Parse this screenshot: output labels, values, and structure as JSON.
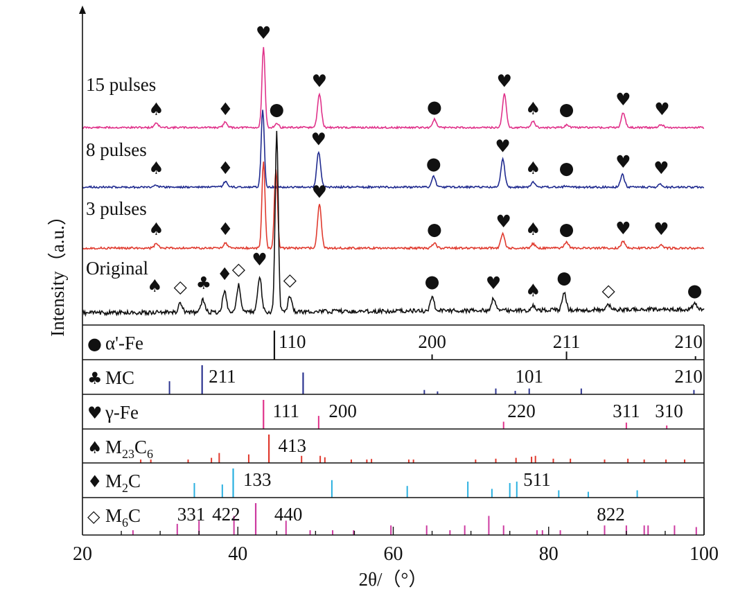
{
  "chart_data": {
    "type": "line",
    "xlabel": "2θ/（°）",
    "ylabel": "Intensity（a.u.）",
    "xlim": [
      20,
      100
    ],
    "x_ticks": [
      "20",
      "40",
      "60",
      "80",
      "100"
    ],
    "series": [
      {
        "name": "15 pulses",
        "color": "#e0328a",
        "symbols_on_curve": [
          "♠",
          "♦",
          "●",
          "♥",
          "♥",
          "●",
          "♥",
          "♠",
          "●",
          "♥",
          "♥"
        ],
        "peaks": [
          [
            29.5,
            0.06
          ],
          [
            38.4,
            0.07
          ],
          [
            43.3,
            1.0
          ],
          [
            45.0,
            0.05
          ],
          [
            50.5,
            0.42
          ],
          [
            65.3,
            0.1
          ],
          [
            74.3,
            0.42
          ],
          [
            78.0,
            0.08
          ],
          [
            82.3,
            0.03
          ],
          [
            89.6,
            0.19
          ],
          [
            94.5,
            0.04
          ]
        ]
      },
      {
        "name": "8 pulses",
        "color": "#1f2a8f",
        "symbols_on_curve": [
          "♠",
          "♦",
          "♥",
          "●",
          "♥",
          "♠",
          "●",
          "♥",
          "♥"
        ],
        "peaks": [
          [
            29.5,
            0.03
          ],
          [
            38.4,
            0.07
          ],
          [
            43.2,
            1.0
          ],
          [
            50.4,
            0.45
          ],
          [
            65.2,
            0.14
          ],
          [
            74.1,
            0.36
          ],
          [
            78.0,
            0.07
          ],
          [
            82.3,
            0.02
          ],
          [
            89.5,
            0.16
          ],
          [
            94.4,
            0.04
          ]
        ]
      },
      {
        "name": "3 pulses",
        "color": "#e03a2e",
        "symbols_on_curve": [
          "♠",
          "♦",
          "♥",
          "●",
          "♥",
          "♠",
          "●",
          "♥",
          "♥"
        ],
        "peaks": [
          [
            29.5,
            0.05
          ],
          [
            38.4,
            0.06
          ],
          [
            43.3,
            1.0
          ],
          [
            44.9,
            0.92
          ],
          [
            50.5,
            0.5
          ],
          [
            65.3,
            0.06
          ],
          [
            74.1,
            0.16
          ],
          [
            78.0,
            0.05
          ],
          [
            82.3,
            0.07
          ],
          [
            89.6,
            0.08
          ],
          [
            94.5,
            0.04
          ]
        ]
      },
      {
        "name": "Original",
        "color": "#111111",
        "symbols_on_curve": [
          "♠",
          "◇",
          "♣",
          "♦",
          "◇",
          "♥",
          "◇",
          "●",
          "♥",
          "♠",
          "●",
          "◇",
          "●"
        ],
        "peaks": [
          [
            32.6,
            0.05
          ],
          [
            35.5,
            0.07
          ],
          [
            38.3,
            0.12
          ],
          [
            40.1,
            0.15
          ],
          [
            42.8,
            0.2
          ],
          [
            45.0,
            1.0
          ],
          [
            46.7,
            0.09
          ],
          [
            65.0,
            0.08
          ],
          [
            72.9,
            0.07
          ],
          [
            78.0,
            0.03
          ],
          [
            82.0,
            0.1
          ],
          [
            87.7,
            0.03
          ],
          [
            98.8,
            0.03
          ]
        ]
      }
    ],
    "reference_panels": [
      {
        "symbol": "●",
        "phase": "α'-Fe",
        "color": "#111111",
        "sticks": [
          [
            44.7,
            1.0
          ],
          [
            65.0,
            0.18
          ],
          [
            82.3,
            0.28
          ],
          [
            98.9,
            0.12
          ]
        ],
        "labels": [
          {
            "text": "110",
            "x": 47.0
          },
          {
            "text": "200",
            "x": 65.0
          },
          {
            "text": "211",
            "x": 82.3
          },
          {
            "text": "210",
            "x": 98.0
          }
        ]
      },
      {
        "symbol": "♣",
        "phase": "MC",
        "color": "#2d3590",
        "sticks": [
          [
            31.2,
            0.45
          ],
          [
            35.4,
            1.0
          ],
          [
            48.4,
            0.75
          ],
          [
            64.0,
            0.15
          ],
          [
            65.7,
            0.1
          ],
          [
            73.2,
            0.2
          ],
          [
            75.7,
            0.12
          ],
          [
            77.5,
            0.2
          ],
          [
            84.2,
            0.2
          ],
          [
            98.7,
            0.15
          ]
        ],
        "labels": [
          {
            "text": "211",
            "x": 38.0
          },
          {
            "text": "101",
            "x": 77.5
          },
          {
            "text": "210",
            "x": 98.0
          }
        ]
      },
      {
        "symbol": "♥",
        "phase": "γ-Fe",
        "color": "#e0328a",
        "sticks": [
          [
            43.3,
            1.0
          ],
          [
            50.4,
            0.45
          ],
          [
            74.2,
            0.25
          ],
          [
            90.0,
            0.22
          ],
          [
            95.2,
            0.12
          ]
        ],
        "labels": [
          {
            "text": "111",
            "x": 46.2
          },
          {
            "text": "200",
            "x": 53.5
          },
          {
            "text": "220",
            "x": 76.5
          },
          {
            "text": "311",
            "x": 90.0
          },
          {
            "text": "310",
            "x": 95.5
          }
        ]
      },
      {
        "symbol": "♠",
        "phase": "M23C6",
        "color": "#e03a2e",
        "sticks": [
          [
            27.5,
            0.12
          ],
          [
            28.8,
            0.12
          ],
          [
            33.6,
            0.12
          ],
          [
            36.6,
            0.18
          ],
          [
            37.6,
            0.35
          ],
          [
            41.4,
            0.3
          ],
          [
            44.0,
            1.0
          ],
          [
            48.2,
            0.25
          ],
          [
            50.6,
            0.25
          ],
          [
            51.2,
            0.2
          ],
          [
            54.6,
            0.12
          ],
          [
            56.6,
            0.12
          ],
          [
            57.2,
            0.14
          ],
          [
            62.0,
            0.12
          ],
          [
            62.6,
            0.12
          ],
          [
            70.6,
            0.12
          ],
          [
            73.2,
            0.15
          ],
          [
            75.8,
            0.18
          ],
          [
            77.8,
            0.22
          ],
          [
            78.3,
            0.25
          ],
          [
            80.6,
            0.15
          ],
          [
            82.8,
            0.15
          ],
          [
            87.2,
            0.12
          ],
          [
            90.2,
            0.15
          ],
          [
            92.3,
            0.12
          ],
          [
            95.1,
            0.12
          ],
          [
            97.5,
            0.12
          ]
        ],
        "labels": [
          {
            "text": "413",
            "x": 47.0
          }
        ]
      },
      {
        "symbol": "♦",
        "phase": "M2C",
        "color": "#2ab0e0",
        "sticks": [
          [
            34.4,
            0.5
          ],
          [
            38.0,
            0.45
          ],
          [
            39.4,
            1.0
          ],
          [
            52.1,
            0.6
          ],
          [
            61.8,
            0.4
          ],
          [
            69.6,
            0.55
          ],
          [
            72.7,
            0.3
          ],
          [
            75.0,
            0.5
          ],
          [
            75.9,
            0.55
          ],
          [
            81.3,
            0.25
          ],
          [
            85.1,
            0.2
          ],
          [
            91.4,
            0.25
          ]
        ],
        "labels": [
          {
            "text": "133",
            "x": 42.5
          },
          {
            "text": "511",
            "x": 78.5
          }
        ]
      },
      {
        "symbol": "◇",
        "phase": "M6C",
        "color": "#cc3aa0",
        "sticks": [
          [
            26.5,
            0.15
          ],
          [
            32.2,
            0.35
          ],
          [
            35.0,
            0.45
          ],
          [
            39.5,
            0.6
          ],
          [
            42.3,
            1.0
          ],
          [
            46.2,
            0.45
          ],
          [
            49.3,
            0.15
          ],
          [
            52.2,
            0.15
          ],
          [
            54.9,
            0.15
          ],
          [
            59.7,
            0.3
          ],
          [
            64.3,
            0.3
          ],
          [
            67.3,
            0.15
          ],
          [
            69.2,
            0.3
          ],
          [
            72.3,
            0.6
          ],
          [
            74.2,
            0.3
          ],
          [
            78.5,
            0.15
          ],
          [
            79.2,
            0.15
          ],
          [
            81.5,
            0.15
          ],
          [
            87.2,
            0.3
          ],
          [
            90.0,
            0.3
          ],
          [
            92.3,
            0.3
          ],
          [
            92.8,
            0.3
          ],
          [
            96.2,
            0.3
          ],
          [
            99.0,
            0.25
          ]
        ],
        "labels": [
          {
            "text": "331",
            "x": 34.0
          },
          {
            "text": "422",
            "x": 38.5
          },
          {
            "text": "440",
            "x": 46.5
          },
          {
            "text": "822",
            "x": 88.0
          }
        ]
      }
    ]
  }
}
